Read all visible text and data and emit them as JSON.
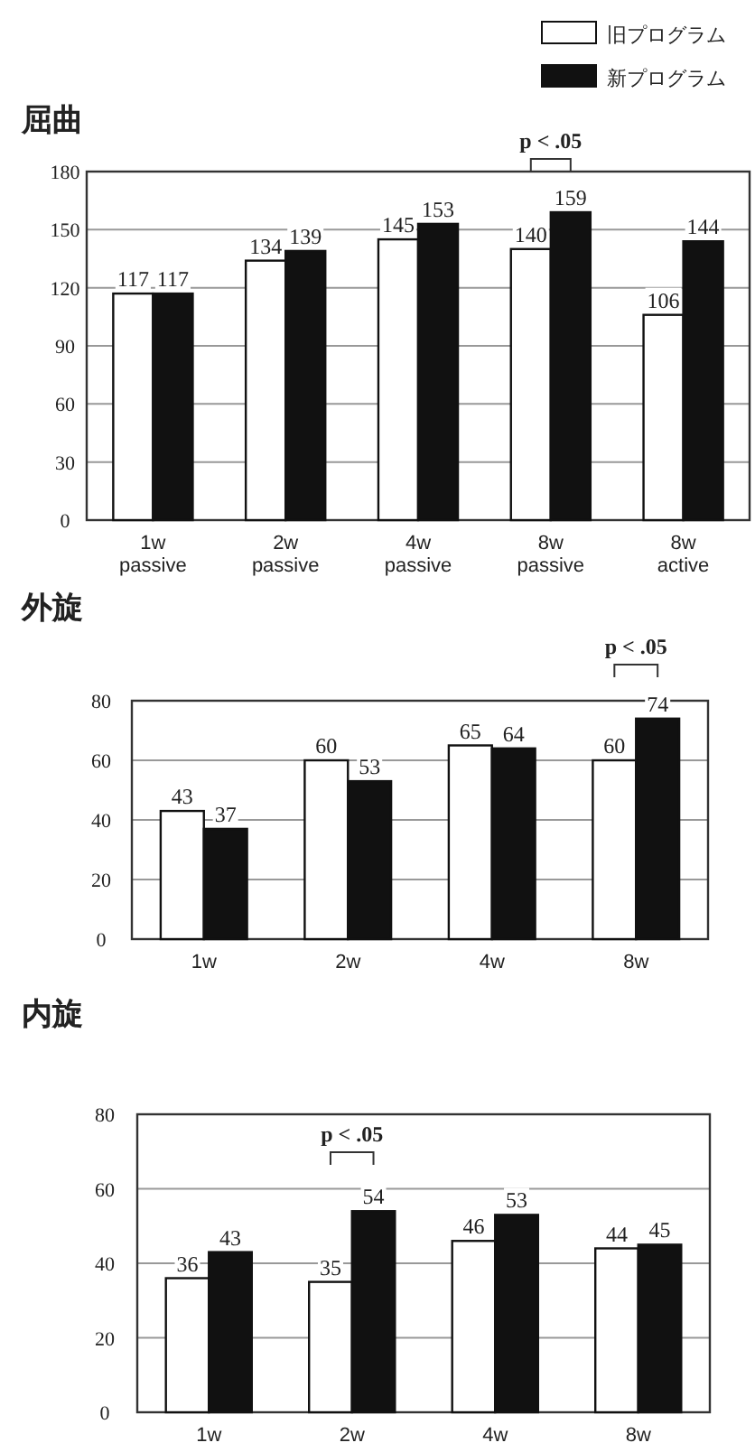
{
  "chart_data": [
    {
      "type": "bar",
      "title": "屈曲",
      "categories": [
        "1w\npassive",
        "2w\npassive",
        "4w\npassive",
        "8w\npassive",
        "8w\nactive"
      ],
      "series": [
        {
          "name": "旧プログラム",
          "color": "#ffffff",
          "values": [
            117,
            134,
            145,
            140,
            106
          ]
        },
        {
          "name": "新プログラム",
          "color": "#111111",
          "values": [
            117,
            139,
            153,
            159,
            144
          ]
        }
      ],
      "ylim": [
        0,
        180
      ],
      "yticks": [
        0,
        30,
        60,
        90,
        120,
        150,
        180
      ],
      "grid": "y",
      "legend": "top right",
      "data_labels": true,
      "annotations": [
        "p < .05"
      ]
    },
    {
      "type": "bar",
      "title": "外旋",
      "categories": [
        "1w",
        "2w",
        "4w",
        "8w"
      ],
      "series": [
        {
          "color": "#ffffff",
          "values": [
            43,
            60,
            65,
            60
          ]
        },
        {
          "color": "#111111",
          "values": [
            37,
            53,
            64,
            74
          ]
        }
      ],
      "ylim": [
        0,
        80
      ],
      "yticks": [
        0,
        20,
        40,
        60,
        80
      ],
      "grid": "y",
      "data_labels": true,
      "annotations": [
        "p < .05"
      ]
    },
    {
      "type": "bar",
      "title": "内旋",
      "categories": [
        "1w",
        "2w",
        "4w",
        "8w"
      ],
      "series": [
        {
          "color": "#ffffff",
          "values": [
            36,
            35,
            46,
            44
          ]
        },
        {
          "color": "#111111",
          "values": [
            43,
            54,
            53,
            45
          ]
        }
      ],
      "ylim": [
        0,
        80
      ],
      "yticks": [
        0,
        20,
        40,
        60,
        80
      ],
      "grid": "y",
      "data_labels": true,
      "annotations": [
        "p < .05"
      ]
    }
  ]
}
